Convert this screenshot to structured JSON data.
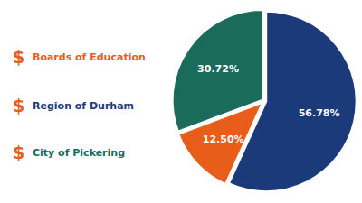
{
  "chart_data": {
    "type": "pie",
    "values": [
      56.78,
      12.5,
      30.72
    ],
    "value_labels": [
      "56.78%",
      "12.50%",
      "30.72%"
    ],
    "colors": [
      "#1a3a7a",
      "#e85d1a",
      "#1a6b5a"
    ],
    "data_labels": true,
    "annotations": [
      {
        "symbol": "$",
        "symbol_color": "#e85d1a",
        "text": "Boards of Education",
        "color": "#e85d1a"
      },
      {
        "symbol": "$",
        "symbol_color": "#e85d1a",
        "text": "Region of Durham",
        "color": "#1a3a7a"
      },
      {
        "symbol": "$",
        "symbol_color": "#e85d1a",
        "text": "City of Pickering",
        "color": "#1a6b5a"
      }
    ]
  }
}
